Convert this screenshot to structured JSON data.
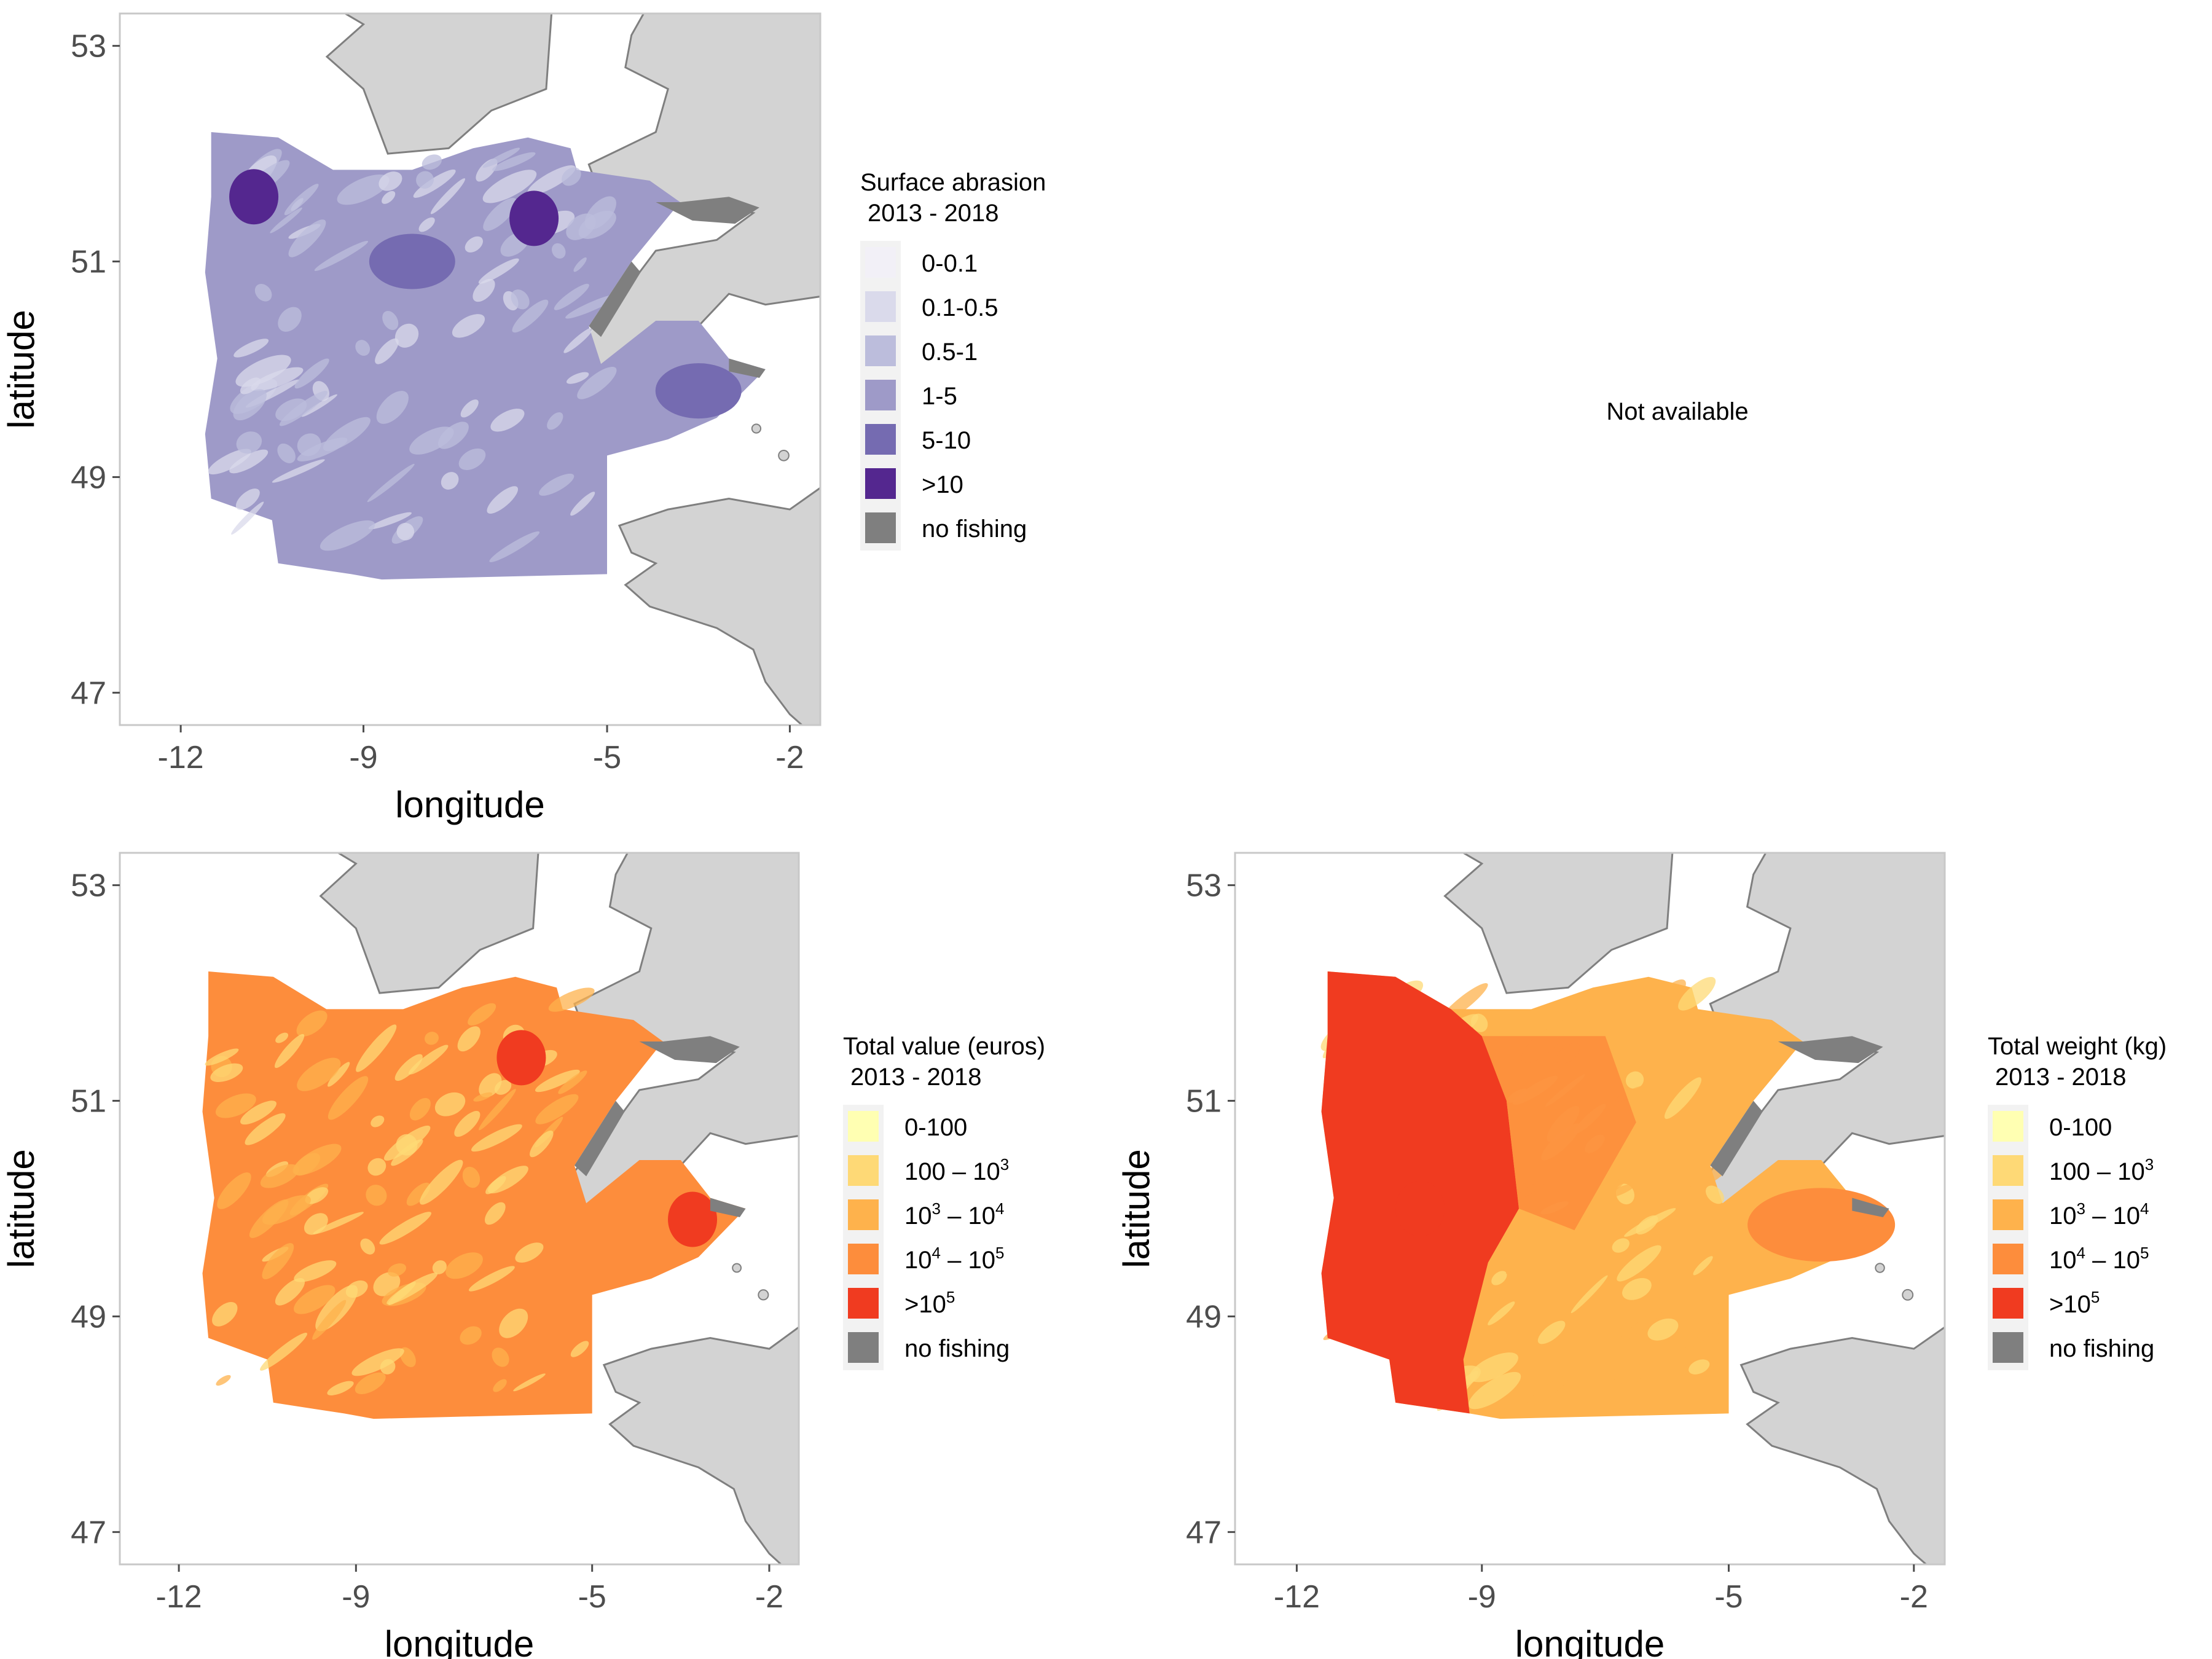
{
  "colors": {
    "land": "#d3d3d3",
    "land_border": "#7f7f7f",
    "no_fishing": "#7f7f7f",
    "panel_border": "#c8c8c8",
    "tick": "#4d4d4d"
  },
  "chart_data": [
    {
      "type": "heatmap",
      "panel": "surface-abrasion",
      "xlabel": "longitude",
      "ylabel": "latitude",
      "xticks": [
        "-12",
        "-9",
        "-5",
        "-2"
      ],
      "yticks": [
        "53",
        "51",
        "49",
        "47"
      ],
      "xlim": [
        -13.0,
        -1.5
      ],
      "ylim": [
        46.7,
        53.3
      ],
      "legend": {
        "title_line1": "Surface abrasion",
        "title_line2": "2013 - 2018",
        "items": [
          {
            "label": "0-0.1",
            "color": "#f2f0f7"
          },
          {
            "label": "0.1-0.5",
            "color": "#dadaeb"
          },
          {
            "label": "0.5-1",
            "color": "#bcbddc"
          },
          {
            "label": "1-5",
            "color": "#9e9ac8"
          },
          {
            "label": "5-10",
            "color": "#756bb1"
          },
          {
            "label": ">10",
            "color": "#54278f"
          },
          {
            "label": "no fishing",
            "color": "#7f7f7f"
          }
        ]
      },
      "dominant_class": "1-5",
      "hotspots": [
        {
          "lon": -6.2,
          "lat": 51.4,
          "class": ">10"
        },
        {
          "lon": -10.8,
          "lat": 51.6,
          "class": ">10"
        },
        {
          "lon": -8.2,
          "lat": 51.0,
          "class": "5-10"
        },
        {
          "lon": -3.5,
          "lat": 49.8,
          "class": "5-10"
        }
      ]
    },
    {
      "type": "heatmap",
      "panel": "not-available",
      "message": "Not available"
    },
    {
      "type": "heatmap",
      "panel": "total-value",
      "xlabel": "longitude",
      "ylabel": "latitude",
      "xticks": [
        "-12",
        "-9",
        "-5",
        "-2"
      ],
      "yticks": [
        "53",
        "51",
        "49",
        "47"
      ],
      "xlim": [
        -13.0,
        -1.5
      ],
      "ylim": [
        46.7,
        53.3
      ],
      "legend": {
        "title_line1": "Total value (euros)",
        "title_line2": "2013 - 2018",
        "items": [
          {
            "label": "0-100",
            "color": "#ffffb2"
          },
          {
            "label": "100 – 10",
            "sup": "3",
            "color": "#fed976"
          },
          {
            "label": "10",
            "sup": "3",
            "label_tail": " – 10",
            "sup2": "4",
            "color": "#feb24c"
          },
          {
            "label": "10",
            "sup": "4",
            "label_tail": " – 10",
            "sup2": "5",
            "color": "#fd8d3c"
          },
          {
            "label": ">10",
            "sup": "5",
            "color": "#f03b20"
          },
          {
            "label": "no fishing",
            "color": "#7f7f7f"
          }
        ]
      },
      "dominant_class": "10^4 - 10^5",
      "hotspots": [
        {
          "lon": -6.2,
          "lat": 51.4,
          "class": ">10^5"
        },
        {
          "lon": -3.3,
          "lat": 49.9,
          "class": ">10^5"
        }
      ]
    },
    {
      "type": "heatmap",
      "panel": "total-weight",
      "xlabel": "longitude",
      "ylabel": "latitude",
      "xticks": [
        "-12",
        "-9",
        "-5",
        "-2"
      ],
      "yticks": [
        "53",
        "51",
        "49",
        "47"
      ],
      "xlim": [
        -13.0,
        -1.5
      ],
      "ylim": [
        46.7,
        53.3
      ],
      "legend": {
        "title_line1": "Total weight (kg)",
        "title_line2": "2013 - 2018",
        "items": [
          {
            "label": "0-100",
            "color": "#ffffb2"
          },
          {
            "label": "100 – 10",
            "sup": "3",
            "color": "#fed976"
          },
          {
            "label": "10",
            "sup": "3",
            "label_tail": " – 10",
            "sup2": "4",
            "color": "#feb24c"
          },
          {
            "label": "10",
            "sup": "4",
            "label_tail": " – 10",
            "sup2": "5",
            "color": "#fd8d3c"
          },
          {
            "label": ">10",
            "sup": "5",
            "color": "#f03b20"
          },
          {
            "label": "no fishing",
            "color": "#7f7f7f"
          }
        ]
      },
      "dominant_class": "10^3 - 10^4",
      "hotspots": [
        {
          "lon": -10.0,
          "lat": 50.0,
          "class": ">10^5"
        }
      ]
    }
  ]
}
